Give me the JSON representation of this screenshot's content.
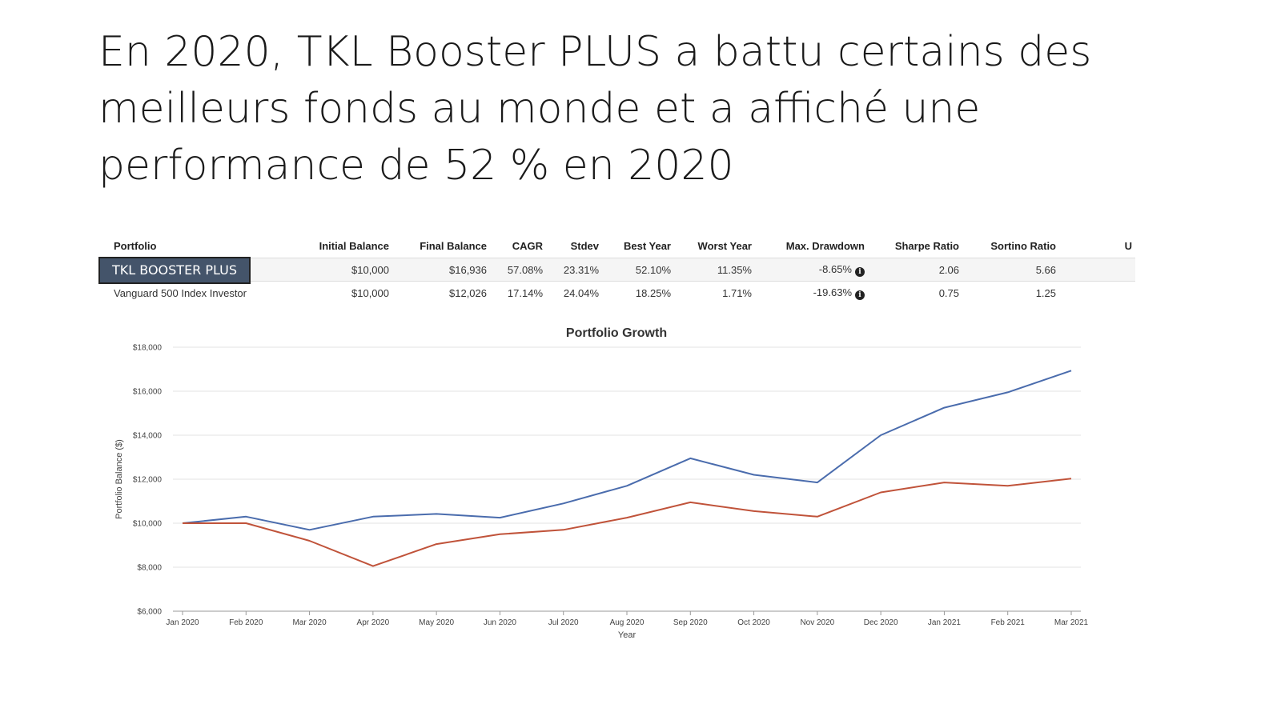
{
  "slide": {
    "title_lines": [
      "En 2020, TKL Booster PLUS a battu certains des",
      "meilleurs fonds au monde et a affiché une",
      "performance de 52 % en 2020"
    ],
    "highlight_label": "TKL BOOSTER PLUS"
  },
  "stats_table": {
    "headers": [
      "Portfolio",
      "Initial Balance",
      "Final Balance",
      "CAGR",
      "Stdev",
      "Best Year",
      "Worst Year",
      "Max. Drawdown",
      "Sharpe Ratio",
      "Sortino Ratio",
      "U"
    ],
    "rows": [
      [
        "",
        "$10,000",
        "$16,936",
        "57.08%",
        "23.31%",
        "52.10%",
        "11.35%",
        "-8.65%",
        "2.06",
        "5.66",
        ""
      ],
      [
        "Vanguard 500 Index Investor",
        "$10,000",
        "$12,026",
        "17.14%",
        "24.04%",
        "18.25%",
        "1.71%",
        "-19.63%",
        "0.75",
        "1.25",
        ""
      ]
    ],
    "info_icon": "info-circle-icon"
  },
  "chart_data": {
    "type": "line",
    "title": "Portfolio Growth",
    "xlabel": "Year",
    "ylabel": "Portfolio Balance ($)",
    "categories": [
      "Jan 2020",
      "Feb 2020",
      "Mar 2020",
      "Apr 2020",
      "May 2020",
      "Jun 2020",
      "Jul 2020",
      "Aug 2020",
      "Sep 2020",
      "Oct 2020",
      "Nov 2020",
      "Dec 2020",
      "Jan 2021",
      "Feb 2021",
      "Mar 2021"
    ],
    "yticks": [
      "$6,000",
      "$8,000",
      "$10,000",
      "$12,000",
      "$14,000",
      "$16,000",
      "$18,000"
    ],
    "ylim": [
      6000,
      18000
    ],
    "grid": true,
    "legend": "none",
    "series": [
      {
        "name": "",
        "color": "#4a6cad",
        "values": [
          10000,
          10300,
          9700,
          10300,
          10420,
          10250,
          10900,
          11700,
          12950,
          12200,
          11850,
          14000,
          15250,
          15950,
          16936
        ]
      },
      {
        "name": "Vanguard 500 Index Investor",
        "color": "#c0533a",
        "values": [
          10000,
          10000,
          9200,
          8050,
          9050,
          9500,
          9700,
          10250,
          10950,
          10550,
          10300,
          11400,
          11850,
          11700,
          12026
        ]
      }
    ]
  }
}
